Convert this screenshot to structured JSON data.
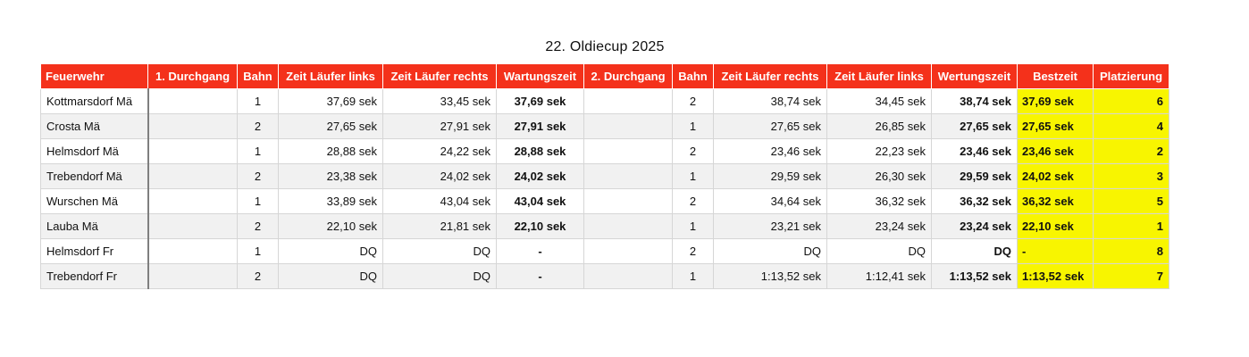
{
  "title": "22. Oldiecup 2025",
  "colors": {
    "header_bg": "#f4311b",
    "highlight": "#f8f500"
  },
  "headers": [
    "Feuerwehr",
    "1. Durchgang",
    "Bahn",
    "Zeit Läufer links",
    "Zeit Läufer rechts",
    "Wartungszeit",
    "2. Durchgang",
    "Bahn",
    "Zeit Läufer rechts",
    "Zeit Läufer links",
    "Wertungszeit",
    "Bestzeit",
    "Platzierung"
  ],
  "rows": [
    [
      "Kottmarsdorf Mä",
      "",
      "1",
      "37,69 sek",
      "33,45 sek",
      "37,69 sek",
      "",
      "2",
      "38,74 sek",
      "34,45 sek",
      "38,74 sek",
      "37,69 sek",
      "6"
    ],
    [
      "Crosta Mä",
      "",
      "2",
      "27,65 sek",
      "27,91 sek",
      "27,91 sek",
      "",
      "1",
      "27,65 sek",
      "26,85 sek",
      "27,65 sek",
      "27,65 sek",
      "4"
    ],
    [
      "Helmsdorf Mä",
      "",
      "1",
      "28,88 sek",
      "24,22 sek",
      "28,88 sek",
      "",
      "2",
      "23,46 sek",
      "22,23 sek",
      "23,46 sek",
      "23,46 sek",
      "2"
    ],
    [
      "Trebendorf Mä",
      "",
      "2",
      "23,38 sek",
      "24,02 sek",
      "24,02 sek",
      "",
      "1",
      "29,59 sek",
      "26,30 sek",
      "29,59 sek",
      "24,02 sek",
      "3"
    ],
    [
      "Wurschen Mä",
      "",
      "1",
      "33,89 sek",
      "43,04 sek",
      "43,04 sek",
      "",
      "2",
      "34,64 sek",
      "36,32 sek",
      "36,32 sek",
      "36,32 sek",
      "5"
    ],
    [
      "Lauba Mä",
      "",
      "2",
      "22,10 sek",
      "21,81 sek",
      "22,10 sek",
      "",
      "1",
      "23,21 sek",
      "23,24 sek",
      "23,24 sek",
      "22,10 sek",
      "1"
    ],
    [
      "Helmsdorf Fr",
      "",
      "1",
      "DQ",
      "DQ",
      "-",
      "",
      "2",
      "DQ",
      "DQ",
      "DQ",
      "-",
      "8"
    ],
    [
      "Trebendorf Fr",
      "",
      "2",
      "DQ",
      "DQ",
      "-",
      "",
      "1",
      "1:13,52 sek",
      "1:12,41 sek",
      "1:13,52 sek",
      "1:13,52 sek",
      "7"
    ]
  ]
}
